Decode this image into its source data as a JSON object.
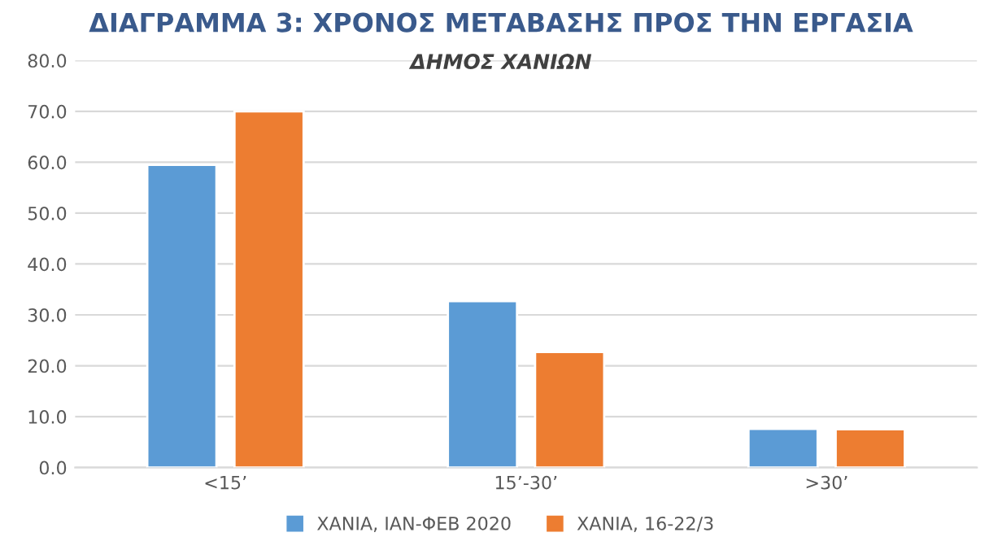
{
  "chart_data": {
    "type": "bar",
    "title": "ΔΙΑΓΡΑΜΜΑ 3: ΧΡΟΝΟΣ ΜΕΤΑΒΑΣΗΣ ΠΡΟΣ ΤΗΝ ΕΡΓΑΣΙΑ",
    "subtitle": "ΔΗΜΟΣ ΧΑΝΙΩΝ",
    "categories": [
      "<15’",
      "15’-30’",
      ">30’"
    ],
    "series": [
      {
        "name": "ΧΑΝΙΑ, ΙΑΝ-ΦΕΒ 2020",
        "color": "#5b9bd5",
        "values": [
          59.5,
          32.7,
          7.6
        ]
      },
      {
        "name": "ΧΑΝΙΑ, 16-22/3",
        "color": "#ed7d31",
        "values": [
          70.0,
          22.7,
          7.5
        ]
      }
    ],
    "ylim": [
      0,
      80
    ],
    "yticks": [
      {
        "value": 0,
        "label": "0.0"
      },
      {
        "value": 10,
        "label": "10.0"
      },
      {
        "value": 20,
        "label": "20.0"
      },
      {
        "value": 30,
        "label": "30.0"
      },
      {
        "value": 40,
        "label": "40.0"
      },
      {
        "value": 50,
        "label": "50.0"
      },
      {
        "value": 60,
        "label": "60.0"
      },
      {
        "value": 70,
        "label": "70.0"
      },
      {
        "value": 80,
        "label": "80.0"
      }
    ],
    "grid": "y",
    "legend": "bottom"
  }
}
